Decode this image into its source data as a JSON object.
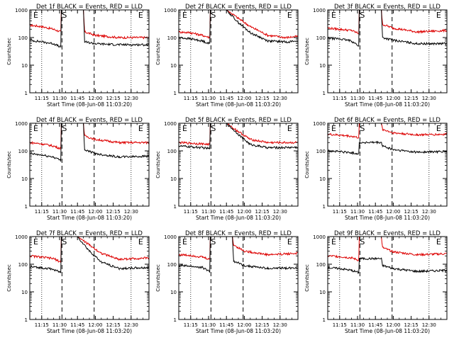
{
  "xlabel": "Start Time (08-Jun-08 11:03:20)",
  "ylabel": "Counts/sec",
  "x_tick_labels": [
    "11:15",
    "11:30",
    "11:45",
    "12:00",
    "12:15",
    "12:30"
  ],
  "y_tick_labels": [
    "1",
    "10",
    "100",
    "1000"
  ],
  "region_labels": [
    "E",
    "S",
    "E"
  ],
  "series_colors": {
    "events": "#000000",
    "lld": "#dd0000"
  },
  "chart_data": [
    {
      "type": "line",
      "title": "Det 1f BLACK = Events, RED = LLD",
      "x_unit": "minutes after 11:03:20",
      "xlim": [
        0,
        100
      ],
      "ylim": [
        1,
        1000
      ],
      "yscale": "log",
      "series": [
        {
          "color": "red",
          "x": [
            0,
            10,
            20,
            26,
            26.5,
            45,
            46,
            55,
            75,
            100
          ],
          "y": [
            280,
            250,
            200,
            160,
            1000,
            1000,
            160,
            120,
            100,
            100
          ]
        },
        {
          "color": "black",
          "x": [
            0,
            10,
            20,
            26,
            26.5,
            45,
            46,
            55,
            75,
            100
          ],
          "y": [
            80,
            70,
            60,
            45,
            1000,
            1000,
            70,
            60,
            55,
            55
          ]
        }
      ]
    },
    {
      "type": "line",
      "title": "Det 2f BLACK = Events, RED = LLD",
      "x_unit": "minutes after 11:03:20",
      "xlim": [
        0,
        100
      ],
      "ylim": [
        1,
        1000
      ],
      "yscale": "log",
      "series": [
        {
          "color": "red",
          "x": [
            0,
            10,
            20,
            26,
            26.5,
            40,
            50,
            60,
            75,
            90,
            100
          ],
          "y": [
            160,
            150,
            120,
            100,
            1000,
            1000,
            500,
            250,
            120,
            100,
            110
          ]
        },
        {
          "color": "black",
          "x": [
            0,
            10,
            20,
            26,
            26.5,
            40,
            50,
            60,
            75,
            90,
            100
          ],
          "y": [
            100,
            90,
            75,
            60,
            1000,
            1000,
            350,
            150,
            75,
            70,
            75
          ]
        }
      ]
    },
    {
      "type": "line",
      "title": "Det 3f BLACK = Events, RED = LLD",
      "x_unit": "minutes after 11:03:20",
      "xlim": [
        0,
        100
      ],
      "ylim": [
        1,
        1000
      ],
      "yscale": "log",
      "series": [
        {
          "color": "red",
          "x": [
            0,
            10,
            20,
            26,
            26.5,
            45,
            46,
            55,
            75,
            100
          ],
          "y": [
            220,
            200,
            180,
            140,
            1000,
            1000,
            300,
            220,
            160,
            180
          ]
        },
        {
          "color": "black",
          "x": [
            0,
            10,
            20,
            26,
            26.5,
            45,
            46,
            55,
            75,
            100
          ],
          "y": [
            95,
            90,
            75,
            50,
            1000,
            1000,
            100,
            80,
            60,
            60
          ]
        }
      ]
    },
    {
      "type": "line",
      "title": "Det 4f BLACK = Events, RED = LLD",
      "x_unit": "minutes after 11:03:20",
      "xlim": [
        0,
        100
      ],
      "ylim": [
        1,
        1000
      ],
      "yscale": "log",
      "series": [
        {
          "color": "red",
          "x": [
            0,
            10,
            20,
            26,
            26.5,
            45,
            46,
            55,
            75,
            100
          ],
          "y": [
            200,
            180,
            150,
            120,
            1000,
            1000,
            350,
            260,
            200,
            200
          ]
        },
        {
          "color": "black",
          "x": [
            0,
            10,
            20,
            26,
            26.5,
            45,
            46,
            55,
            75,
            100
          ],
          "y": [
            80,
            70,
            60,
            45,
            1000,
            1000,
            110,
            80,
            60,
            65
          ]
        }
      ]
    },
    {
      "type": "line",
      "title": "Det 5f BLACK = Events, RED = LLD",
      "x_unit": "minutes after 11:03:20",
      "xlim": [
        0,
        100
      ],
      "ylim": [
        1,
        1000
      ],
      "yscale": "log",
      "series": [
        {
          "color": "red",
          "x": [
            0,
            10,
            20,
            26,
            26.5,
            40,
            50,
            60,
            75,
            100
          ],
          "y": [
            200,
            190,
            180,
            170,
            1000,
            1000,
            500,
            260,
            200,
            200
          ]
        },
        {
          "color": "black",
          "x": [
            0,
            10,
            20,
            26,
            26.5,
            40,
            50,
            60,
            75,
            100
          ],
          "y": [
            150,
            140,
            130,
            120,
            1000,
            1000,
            400,
            170,
            130,
            135
          ]
        }
      ]
    },
    {
      "type": "line",
      "title": "Det 6f BLACK = Events, RED = LLD",
      "x_unit": "minutes after 11:03:20",
      "xlim": [
        0,
        100
      ],
      "ylim": [
        1,
        1000
      ],
      "yscale": "log",
      "series": [
        {
          "color": "red",
          "x": [
            0,
            10,
            20,
            26,
            26.5,
            45,
            46,
            55,
            75,
            100
          ],
          "y": [
            400,
            370,
            340,
            300,
            1000,
            1000,
            600,
            450,
            380,
            400
          ]
        },
        {
          "color": "black",
          "x": [
            0,
            10,
            20,
            26,
            26.5,
            45,
            46,
            55,
            75,
            100
          ],
          "y": [
            100,
            95,
            85,
            80,
            200,
            200,
            150,
            110,
            90,
            95
          ]
        }
      ]
    },
    {
      "type": "line",
      "title": "Det 7f BLACK = Events, RED = LLD",
      "x_unit": "minutes after 11:03:20",
      "xlim": [
        0,
        100
      ],
      "ylim": [
        1,
        1000
      ],
      "yscale": "log",
      "series": [
        {
          "color": "red",
          "x": [
            0,
            10,
            20,
            26,
            26.5,
            40,
            50,
            60,
            75,
            100
          ],
          "y": [
            200,
            180,
            160,
            120,
            1000,
            1000,
            500,
            250,
            150,
            170
          ]
        },
        {
          "color": "black",
          "x": [
            0,
            10,
            20,
            26,
            26.5,
            40,
            50,
            60,
            75,
            100
          ],
          "y": [
            80,
            75,
            65,
            50,
            1000,
            1000,
            300,
            120,
            70,
            75
          ]
        }
      ]
    },
    {
      "type": "line",
      "title": "Det 8f BLACK = Events, RED = LLD",
      "x_unit": "minutes after 11:03:20",
      "xlim": [
        0,
        100
      ],
      "ylim": [
        1,
        1000
      ],
      "yscale": "log",
      "series": [
        {
          "color": "red",
          "x": [
            0,
            10,
            20,
            26,
            26.5,
            45,
            46,
            55,
            75,
            100
          ],
          "y": [
            220,
            210,
            180,
            150,
            1000,
            1000,
            500,
            300,
            220,
            250
          ]
        },
        {
          "color": "black",
          "x": [
            0,
            10,
            20,
            26,
            26.5,
            45,
            46,
            55,
            75,
            100
          ],
          "y": [
            90,
            85,
            75,
            55,
            1000,
            1000,
            130,
            90,
            70,
            75
          ]
        }
      ]
    },
    {
      "type": "line",
      "title": "Det 9f BLACK = Events, RED = LLD",
      "x_unit": "minutes after 11:03:20",
      "xlim": [
        0,
        100
      ],
      "ylim": [
        1,
        1000
      ],
      "yscale": "log",
      "series": [
        {
          "color": "red",
          "x": [
            0,
            10,
            20,
            26,
            26.5,
            45,
            46,
            55,
            75,
            100
          ],
          "y": [
            200,
            190,
            170,
            140,
            1000,
            1000,
            400,
            280,
            220,
            240
          ]
        },
        {
          "color": "black",
          "x": [
            0,
            10,
            20,
            26,
            26.5,
            45,
            46,
            55,
            75,
            100
          ],
          "y": [
            75,
            70,
            60,
            50,
            160,
            160,
            90,
            70,
            55,
            60
          ]
        }
      ]
    }
  ]
}
